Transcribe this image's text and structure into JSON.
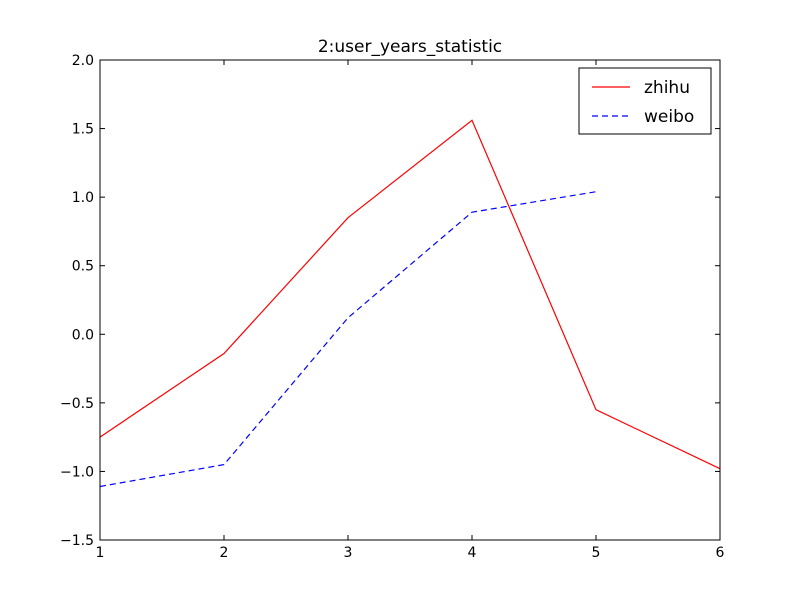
{
  "chart_data": {
    "type": "line",
    "title": "2:user_years_statistic",
    "xlabel": "",
    "ylabel": "",
    "xlim": [
      1,
      6
    ],
    "ylim": [
      -1.5,
      2.0
    ],
    "xticks": [
      1,
      2,
      3,
      4,
      5,
      6
    ],
    "xtick_labels": [
      "1",
      "2",
      "3",
      "4",
      "5",
      "6"
    ],
    "yticks": [
      -1.5,
      -1.0,
      -0.5,
      0.0,
      0.5,
      1.0,
      1.5,
      2.0
    ],
    "ytick_labels": [
      "−1.5",
      "−1.0",
      "−0.5",
      "0.0",
      "0.5",
      "1.0",
      "1.5",
      "2.0"
    ],
    "grid": false,
    "legend_position": "top-right",
    "series": [
      {
        "name": "zhihu",
        "color": "#ff0000",
        "style": "solid",
        "x": [
          1,
          2,
          3,
          4,
          5,
          6
        ],
        "y": [
          -0.75,
          -0.14,
          0.85,
          1.56,
          -0.55,
          -0.98
        ]
      },
      {
        "name": "weibo",
        "color": "#0000ff",
        "style": "dashed",
        "x": [
          1,
          2,
          3,
          4,
          5
        ],
        "y": [
          -1.11,
          -0.95,
          0.12,
          0.89,
          1.04
        ]
      }
    ]
  }
}
